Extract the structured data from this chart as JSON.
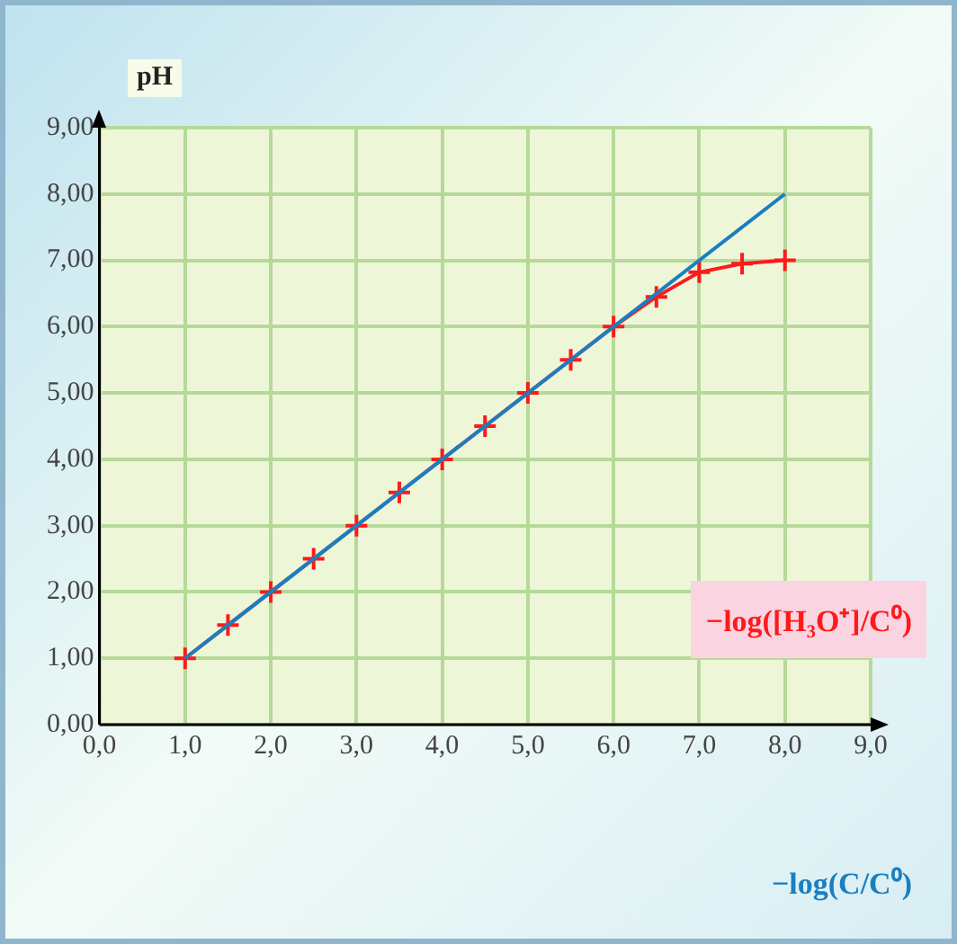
{
  "chart_data": {
    "type": "line",
    "ylabel": "pH",
    "xlabel": "−log(C/C⁰)",
    "xlim": [
      0,
      9
    ],
    "xticks": [
      {
        "value": 0,
        "label": "0,0"
      },
      {
        "value": 1,
        "label": "1,0"
      },
      {
        "value": 2,
        "label": "2,0"
      },
      {
        "value": 3,
        "label": "3,0"
      },
      {
        "value": 4,
        "label": "4,0"
      },
      {
        "value": 5,
        "label": "5,0"
      },
      {
        "value": 6,
        "label": "6,0"
      },
      {
        "value": 7,
        "label": "7,0"
      },
      {
        "value": 8,
        "label": "8,0"
      },
      {
        "value": 9,
        "label": "9,0"
      }
    ],
    "ylim": [
      0,
      9
    ],
    "yticks": [
      {
        "value": 0,
        "label": "0,00"
      },
      {
        "value": 1,
        "label": "1,00"
      },
      {
        "value": 2,
        "label": "2,00"
      },
      {
        "value": 3,
        "label": "3,00"
      },
      {
        "value": 4,
        "label": "4,00"
      },
      {
        "value": 5,
        "label": "5,00"
      },
      {
        "value": 6,
        "label": "6,00"
      },
      {
        "value": 7,
        "label": "7,00"
      },
      {
        "value": 8,
        "label": "8,00"
      },
      {
        "value": 9,
        "label": "9,00"
      }
    ],
    "grid": true,
    "legend": "bottom right",
    "series": [
      {
        "color": "#1a7fc1",
        "x": [
          1,
          8
        ],
        "values": [
          1,
          8
        ],
        "marker": "none"
      },
      {
        "name": "−log([H₃O⁺]/C⁰)",
        "color": "#ff1a1a",
        "x": [
          1,
          1.5,
          2,
          2.5,
          3,
          3.5,
          4,
          4.5,
          5,
          5.5,
          6,
          6.5,
          7,
          7.5,
          8
        ],
        "values": [
          1,
          1.5,
          2,
          2.5,
          3,
          3.5,
          4,
          4.5,
          5,
          5.5,
          6,
          6.45,
          6.82,
          6.95,
          7.0
        ],
        "marker": "cross"
      }
    ]
  }
}
